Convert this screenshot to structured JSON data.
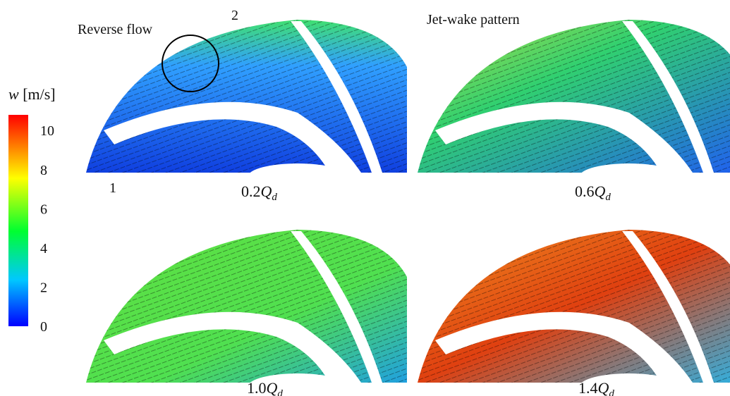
{
  "colorbar": {
    "symbol": "w",
    "unit": "[m/s]",
    "range": [
      0,
      10.8
    ],
    "ticks": [
      0,
      2,
      4,
      6,
      8,
      10
    ]
  },
  "annotations": {
    "reverse_flow": "Reverse flow",
    "jet_wake": "Jet-wake pattern",
    "point_1": "1",
    "point_2": "2"
  },
  "panels": [
    {
      "coefficient": "0.2",
      "symbol": "Q",
      "subscript": "d"
    },
    {
      "coefficient": "0.6",
      "symbol": "Q",
      "subscript": "d"
    },
    {
      "coefficient": "1.0",
      "symbol": "Q",
      "subscript": "d"
    },
    {
      "coefficient": "1.4",
      "symbol": "Q",
      "subscript": "d"
    }
  ]
}
